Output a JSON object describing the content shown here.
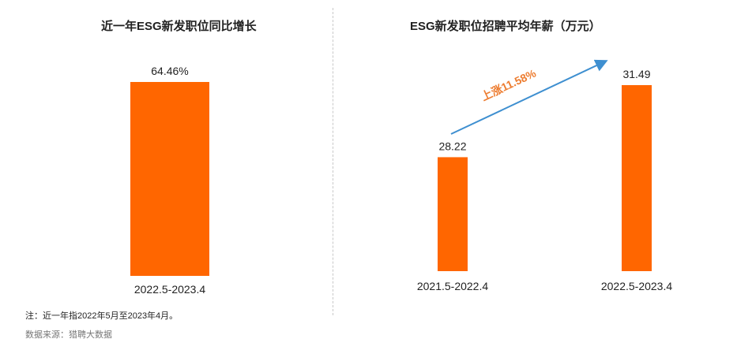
{
  "chart_data": [
    {
      "type": "bar",
      "title": "近一年ESG新发职位同比增长",
      "categories": [
        "2022.5-2023.4"
      ],
      "values": [
        64.46
      ],
      "value_labels": [
        "64.46%"
      ],
      "ylim": [
        0,
        64.46
      ],
      "grid": false,
      "bar_color": "#ff6600"
    },
    {
      "type": "bar",
      "title": "ESG新发职位招聘平均年薪（万元）",
      "categories": [
        "2021.5-2022.4",
        "2022.5-2023.4"
      ],
      "values": [
        28.22,
        31.49
      ],
      "value_labels": [
        "28.22",
        "31.49"
      ],
      "ylim": [
        23.05,
        31.49
      ],
      "grid": false,
      "bar_color": "#ff6600",
      "annotation": {
        "text": "上涨11.58%",
        "color": "#ed7d31",
        "arrow_color": "#3e8fd0"
      }
    }
  ],
  "footnote": "注：近一年指2022年5月至2023年4月。",
  "source": "数据来源：猎聘大数据"
}
